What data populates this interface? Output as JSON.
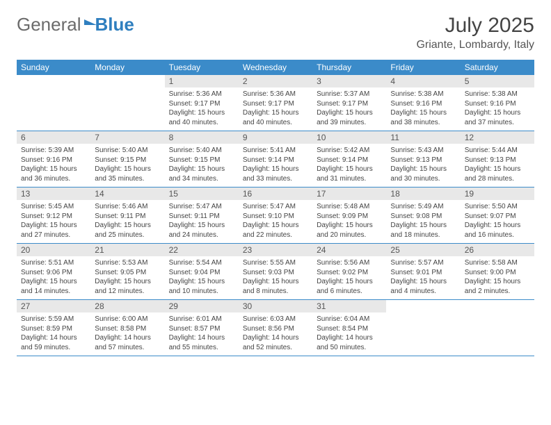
{
  "logo": {
    "word1": "General",
    "word2": "Blue"
  },
  "title": "July 2025",
  "location": "Griante, Lombardy, Italy",
  "colors": {
    "header_bg": "#3b8bc9",
    "header_text": "#ffffff",
    "daynum_bg": "#e8e8e8",
    "border": "#3b8bc9",
    "text": "#444444",
    "logo_gray": "#6b6b6b",
    "logo_blue": "#2f7fbf"
  },
  "days_of_week": [
    "Sunday",
    "Monday",
    "Tuesday",
    "Wednesday",
    "Thursday",
    "Friday",
    "Saturday"
  ],
  "weeks": [
    [
      {
        "n": "",
        "empty": true
      },
      {
        "n": "",
        "empty": true
      },
      {
        "n": "1",
        "sunrise": "5:36 AM",
        "sunset": "9:17 PM",
        "daylight": "15 hours and 40 minutes."
      },
      {
        "n": "2",
        "sunrise": "5:36 AM",
        "sunset": "9:17 PM",
        "daylight": "15 hours and 40 minutes."
      },
      {
        "n": "3",
        "sunrise": "5:37 AM",
        "sunset": "9:17 PM",
        "daylight": "15 hours and 39 minutes."
      },
      {
        "n": "4",
        "sunrise": "5:38 AM",
        "sunset": "9:16 PM",
        "daylight": "15 hours and 38 minutes."
      },
      {
        "n": "5",
        "sunrise": "5:38 AM",
        "sunset": "9:16 PM",
        "daylight": "15 hours and 37 minutes."
      }
    ],
    [
      {
        "n": "6",
        "sunrise": "5:39 AM",
        "sunset": "9:16 PM",
        "daylight": "15 hours and 36 minutes."
      },
      {
        "n": "7",
        "sunrise": "5:40 AM",
        "sunset": "9:15 PM",
        "daylight": "15 hours and 35 minutes."
      },
      {
        "n": "8",
        "sunrise": "5:40 AM",
        "sunset": "9:15 PM",
        "daylight": "15 hours and 34 minutes."
      },
      {
        "n": "9",
        "sunrise": "5:41 AM",
        "sunset": "9:14 PM",
        "daylight": "15 hours and 33 minutes."
      },
      {
        "n": "10",
        "sunrise": "5:42 AM",
        "sunset": "9:14 PM",
        "daylight": "15 hours and 31 minutes."
      },
      {
        "n": "11",
        "sunrise": "5:43 AM",
        "sunset": "9:13 PM",
        "daylight": "15 hours and 30 minutes."
      },
      {
        "n": "12",
        "sunrise": "5:44 AM",
        "sunset": "9:13 PM",
        "daylight": "15 hours and 28 minutes."
      }
    ],
    [
      {
        "n": "13",
        "sunrise": "5:45 AM",
        "sunset": "9:12 PM",
        "daylight": "15 hours and 27 minutes."
      },
      {
        "n": "14",
        "sunrise": "5:46 AM",
        "sunset": "9:11 PM",
        "daylight": "15 hours and 25 minutes."
      },
      {
        "n": "15",
        "sunrise": "5:47 AM",
        "sunset": "9:11 PM",
        "daylight": "15 hours and 24 minutes."
      },
      {
        "n": "16",
        "sunrise": "5:47 AM",
        "sunset": "9:10 PM",
        "daylight": "15 hours and 22 minutes."
      },
      {
        "n": "17",
        "sunrise": "5:48 AM",
        "sunset": "9:09 PM",
        "daylight": "15 hours and 20 minutes."
      },
      {
        "n": "18",
        "sunrise": "5:49 AM",
        "sunset": "9:08 PM",
        "daylight": "15 hours and 18 minutes."
      },
      {
        "n": "19",
        "sunrise": "5:50 AM",
        "sunset": "9:07 PM",
        "daylight": "15 hours and 16 minutes."
      }
    ],
    [
      {
        "n": "20",
        "sunrise": "5:51 AM",
        "sunset": "9:06 PM",
        "daylight": "15 hours and 14 minutes."
      },
      {
        "n": "21",
        "sunrise": "5:53 AM",
        "sunset": "9:05 PM",
        "daylight": "15 hours and 12 minutes."
      },
      {
        "n": "22",
        "sunrise": "5:54 AM",
        "sunset": "9:04 PM",
        "daylight": "15 hours and 10 minutes."
      },
      {
        "n": "23",
        "sunrise": "5:55 AM",
        "sunset": "9:03 PM",
        "daylight": "15 hours and 8 minutes."
      },
      {
        "n": "24",
        "sunrise": "5:56 AM",
        "sunset": "9:02 PM",
        "daylight": "15 hours and 6 minutes."
      },
      {
        "n": "25",
        "sunrise": "5:57 AM",
        "sunset": "9:01 PM",
        "daylight": "15 hours and 4 minutes."
      },
      {
        "n": "26",
        "sunrise": "5:58 AM",
        "sunset": "9:00 PM",
        "daylight": "15 hours and 2 minutes."
      }
    ],
    [
      {
        "n": "27",
        "sunrise": "5:59 AM",
        "sunset": "8:59 PM",
        "daylight": "14 hours and 59 minutes."
      },
      {
        "n": "28",
        "sunrise": "6:00 AM",
        "sunset": "8:58 PM",
        "daylight": "14 hours and 57 minutes."
      },
      {
        "n": "29",
        "sunrise": "6:01 AM",
        "sunset": "8:57 PM",
        "daylight": "14 hours and 55 minutes."
      },
      {
        "n": "30",
        "sunrise": "6:03 AM",
        "sunset": "8:56 PM",
        "daylight": "14 hours and 52 minutes."
      },
      {
        "n": "31",
        "sunrise": "6:04 AM",
        "sunset": "8:54 PM",
        "daylight": "14 hours and 50 minutes."
      },
      {
        "n": "",
        "empty": true
      },
      {
        "n": "",
        "empty": true
      }
    ]
  ],
  "labels": {
    "sunrise": "Sunrise:",
    "sunset": "Sunset:",
    "daylight": "Daylight:"
  }
}
